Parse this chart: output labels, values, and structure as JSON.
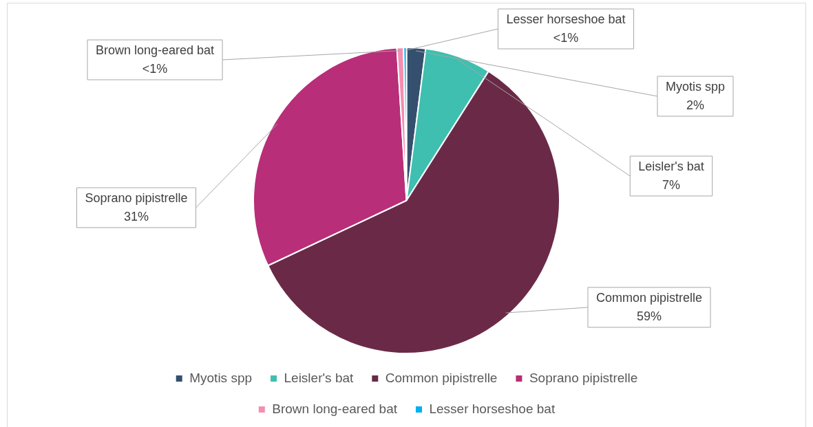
{
  "chart_data": {
    "type": "pie",
    "categories": [
      "Myotis spp",
      "Leisler's bat",
      "Common pipistrelle",
      "Soprano pipistrelle",
      "Brown long-eared bat",
      "Lesser horseshoe bat"
    ],
    "values": [
      2,
      7,
      59,
      31,
      0.7,
      0.3
    ],
    "value_labels": [
      "2%",
      "7%",
      "59%",
      "31%",
      "<1%",
      "<1%"
    ],
    "colors": [
      "#34506e",
      "#3ebfb0",
      "#6a2a47",
      "#b82e78",
      "#f48fb1",
      "#00b0f0"
    ],
    "legend": "bottom"
  }
}
